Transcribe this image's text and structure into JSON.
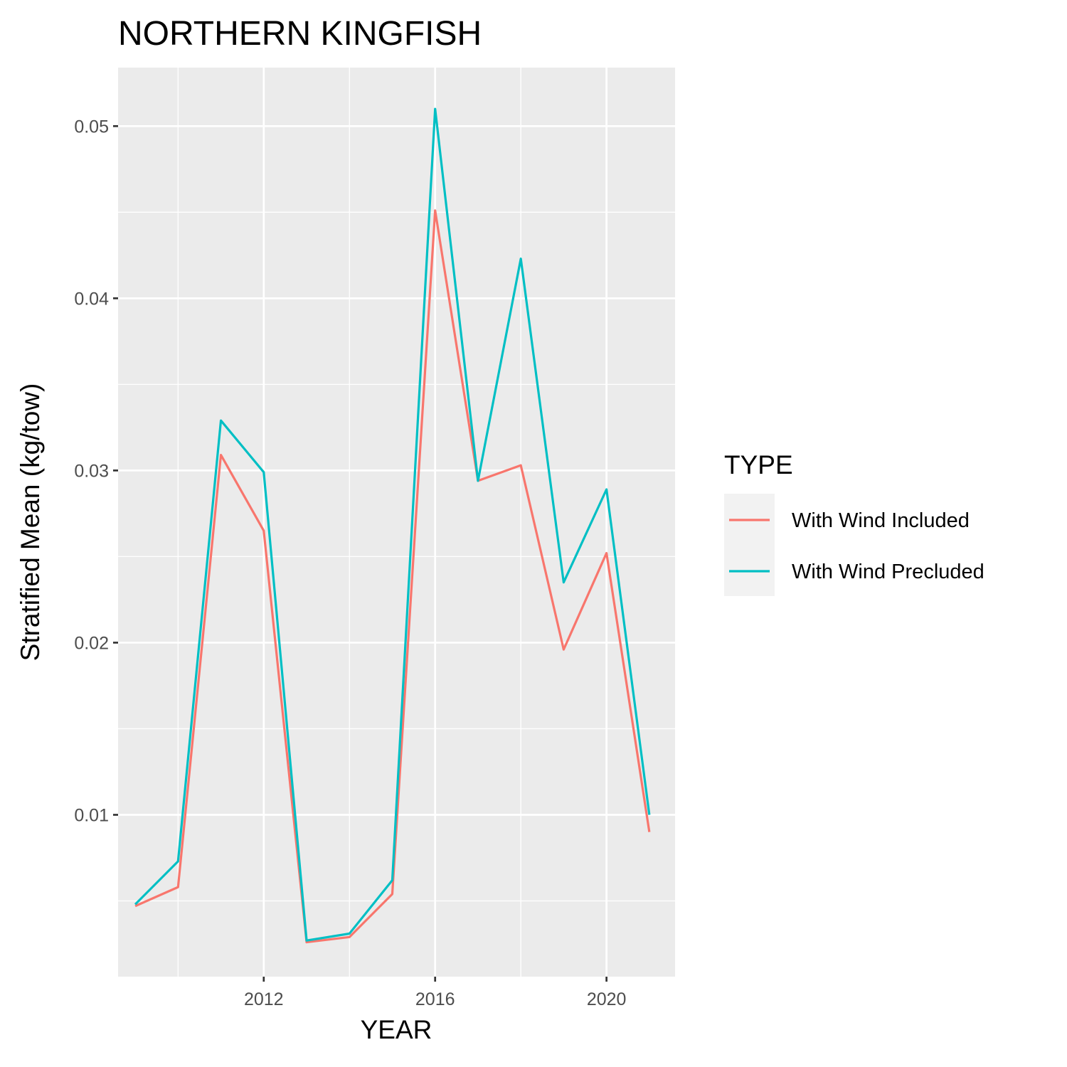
{
  "chart_data": {
    "type": "line",
    "title": "NORTHERN KINGFISH",
    "xlabel": "YEAR",
    "ylabel": "Stratified Mean (kg/tow)",
    "x": [
      2009,
      2010,
      2011,
      2012,
      2013,
      2014,
      2015,
      2016,
      2017,
      2018,
      2019,
      2020,
      2021
    ],
    "xlim": [
      2008.6,
      2021.6
    ],
    "ylim": [
      0.0006,
      0.0534
    ],
    "x_ticks": [
      2012,
      2016,
      2020
    ],
    "x_tick_labels": [
      "2012",
      "2016",
      "2020"
    ],
    "y_ticks": [
      0.01,
      0.02,
      0.03,
      0.04,
      0.05
    ],
    "y_tick_labels": [
      "0.01",
      "0.02",
      "0.03",
      "0.04",
      "0.05"
    ],
    "grid": true,
    "legend": {
      "title": "TYPE",
      "placement": "right"
    },
    "series": [
      {
        "name": "With Wind Included",
        "color": "#F8766D",
        "values": [
          0.0047,
          0.0058,
          0.0309,
          0.0265,
          0.0026,
          0.0029,
          0.0054,
          0.0451,
          0.0294,
          0.0303,
          0.0196,
          0.0252,
          0.009
        ]
      },
      {
        "name": "With Wind Precluded",
        "color": "#00BFC4",
        "values": [
          0.0048,
          0.0073,
          0.0329,
          0.0299,
          0.0027,
          0.0031,
          0.0062,
          0.051,
          0.0294,
          0.0423,
          0.0235,
          0.0289,
          0.01
        ]
      }
    ]
  }
}
